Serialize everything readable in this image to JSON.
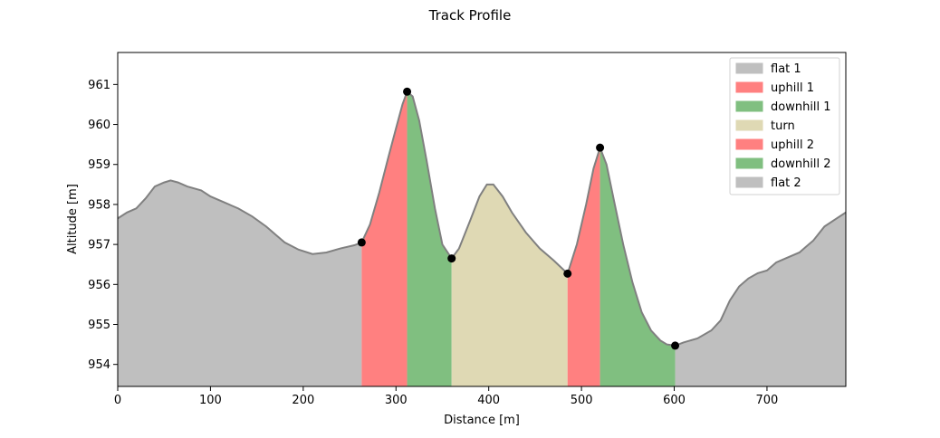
{
  "chart_data": {
    "type": "area",
    "title": "Track Profile",
    "xlabel": "Distance [m]",
    "ylabel": "Altitude [m]",
    "xlim": [
      0,
      785
    ],
    "ylim": [
      953.45,
      961.8
    ],
    "xticks": [
      0,
      100,
      200,
      300,
      400,
      500,
      600,
      700
    ],
    "yticks": [
      954,
      955,
      956,
      957,
      958,
      959,
      960,
      961
    ],
    "grid": false,
    "legend_position": "top-right",
    "profile": {
      "line_color": "#808080",
      "points": [
        [
          0,
          957.65
        ],
        [
          10,
          957.8
        ],
        [
          20,
          957.9
        ],
        [
          30,
          958.15
        ],
        [
          40,
          958.45
        ],
        [
          50,
          958.55
        ],
        [
          57,
          958.6
        ],
        [
          65,
          958.55
        ],
        [
          75,
          958.45
        ],
        [
          90,
          958.35
        ],
        [
          100,
          958.2
        ],
        [
          115,
          958.05
        ],
        [
          130,
          957.9
        ],
        [
          145,
          957.7
        ],
        [
          160,
          957.45
        ],
        [
          170,
          957.25
        ],
        [
          180,
          957.05
        ],
        [
          195,
          956.87
        ],
        [
          210,
          956.76
        ],
        [
          225,
          956.8
        ],
        [
          240,
          956.9
        ],
        [
          255,
          956.98
        ],
        [
          263,
          957.05
        ],
        [
          272,
          957.5
        ],
        [
          282,
          958.3
        ],
        [
          292,
          959.2
        ],
        [
          300,
          959.9
        ],
        [
          307,
          960.5
        ],
        [
          312,
          960.82
        ],
        [
          318,
          960.7
        ],
        [
          325,
          960.1
        ],
        [
          333,
          959.1
        ],
        [
          342,
          957.9
        ],
        [
          350,
          957.0
        ],
        [
          360,
          956.65
        ],
        [
          368,
          956.9
        ],
        [
          380,
          957.6
        ],
        [
          390,
          958.2
        ],
        [
          398,
          958.5
        ],
        [
          405,
          958.5
        ],
        [
          415,
          958.2
        ],
        [
          425,
          957.8
        ],
        [
          440,
          957.3
        ],
        [
          455,
          956.9
        ],
        [
          470,
          956.6
        ],
        [
          485,
          956.27
        ],
        [
          495,
          957.0
        ],
        [
          505,
          958.0
        ],
        [
          513,
          958.9
        ],
        [
          520,
          959.42
        ],
        [
          527,
          959.0
        ],
        [
          535,
          958.1
        ],
        [
          545,
          957.0
        ],
        [
          555,
          956.05
        ],
        [
          565,
          955.3
        ],
        [
          575,
          954.85
        ],
        [
          585,
          954.6
        ],
        [
          592,
          954.5
        ],
        [
          601,
          954.47
        ],
        [
          610,
          954.55
        ],
        [
          625,
          954.65
        ],
        [
          640,
          954.85
        ],
        [
          650,
          955.1
        ],
        [
          660,
          955.6
        ],
        [
          670,
          955.95
        ],
        [
          680,
          956.15
        ],
        [
          690,
          956.28
        ],
        [
          700,
          956.35
        ],
        [
          710,
          956.55
        ],
        [
          720,
          956.65
        ],
        [
          735,
          956.8
        ],
        [
          750,
          957.1
        ],
        [
          762,
          957.45
        ],
        [
          775,
          957.65
        ],
        [
          785,
          957.8
        ]
      ]
    },
    "segments": [
      {
        "name": "flat 1",
        "x_start": 0,
        "x_end": 263,
        "color": "#bfbfbf"
      },
      {
        "name": "uphill 1",
        "x_start": 263,
        "x_end": 312,
        "color": "#ff8080"
      },
      {
        "name": "downhill 1",
        "x_start": 312,
        "x_end": 360,
        "color": "#80bf80"
      },
      {
        "name": "turn",
        "x_start": 360,
        "x_end": 485,
        "color": "#dfd9b4"
      },
      {
        "name": "uphill 2",
        "x_start": 485,
        "x_end": 520,
        "color": "#ff8080"
      },
      {
        "name": "downhill 2",
        "x_start": 520,
        "x_end": 601,
        "color": "#80bf80"
      },
      {
        "name": "flat 2",
        "x_start": 601,
        "x_end": 785,
        "color": "#bfbfbf"
      }
    ],
    "markers": [
      [
        263,
        957.05
      ],
      [
        312,
        960.82
      ],
      [
        360,
        956.65
      ],
      [
        485,
        956.27
      ],
      [
        520,
        959.42
      ],
      [
        601,
        954.47
      ]
    ]
  }
}
